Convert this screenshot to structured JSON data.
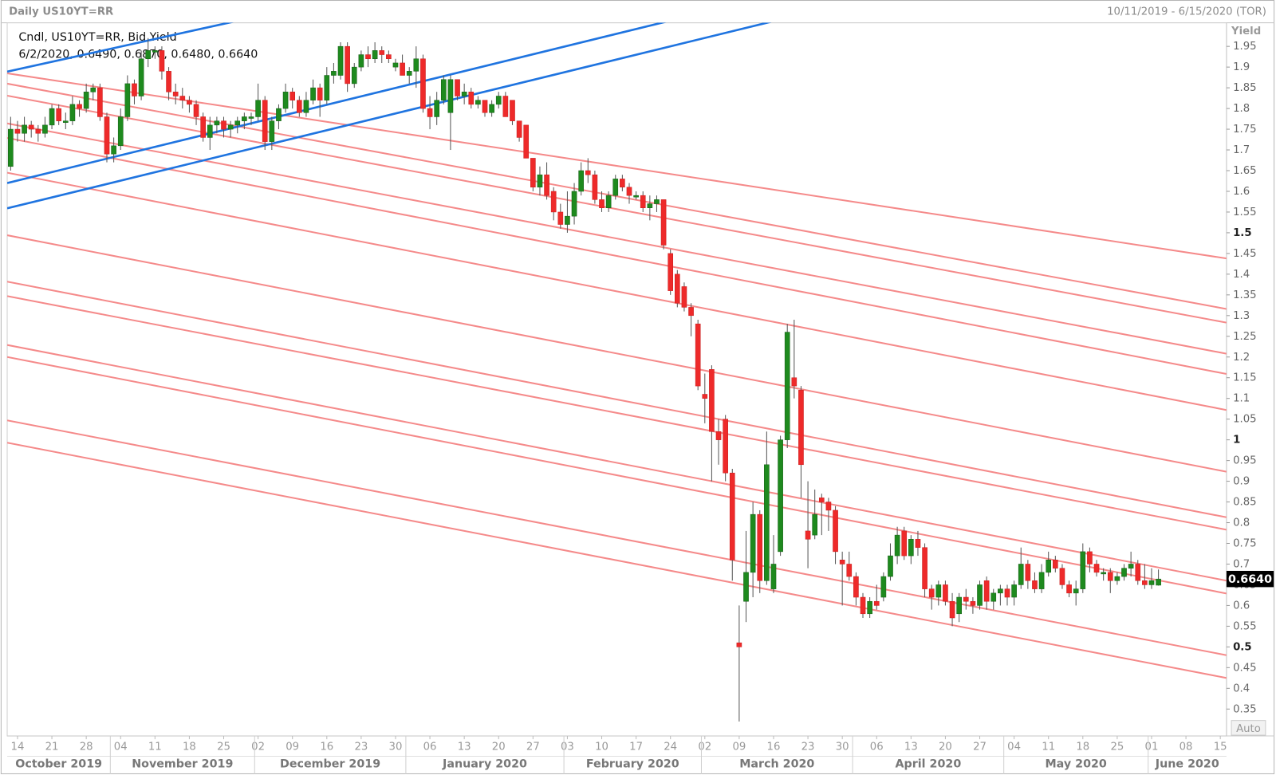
{
  "chart_data": {
    "type": "candlestick",
    "title": "Daily US10YT=RR",
    "date_range": "10/11/2019 - 6/15/2020 (TOR)",
    "legend_name": "Cndl, US10YT=RR, Bid Yield",
    "legend_values": "6/2/2020, 0.6490, 0.6870, 0.6480, 0.6640",
    "y_label": "Yield",
    "scale_mode": "Auto",
    "up_color": "#1e8a1e",
    "down_color": "#ee2a2a",
    "ylim": [
      0.285,
      2.007
    ],
    "yticks": [
      0.35,
      0.4,
      0.45,
      0.5,
      0.55,
      0.6,
      0.65,
      0.7,
      0.75,
      0.8,
      0.85,
      0.9,
      0.95,
      1,
      1.05,
      1.1,
      1.15,
      1.2,
      1.25,
      1.3,
      1.35,
      1.4,
      1.45,
      1.5,
      1.55,
      1.6,
      1.65,
      1.7,
      1.75,
      1.8,
      1.85,
      1.9,
      1.95
    ],
    "last_price": {
      "value": 0.664,
      "label": "0.6640"
    },
    "xlim": [
      -0.5,
      176.9
    ],
    "xticks": [
      {
        "value": 1,
        "label": "14"
      },
      {
        "value": 6,
        "label": "21"
      },
      {
        "value": 11,
        "label": "28"
      },
      {
        "value": 16,
        "label": "04"
      },
      {
        "value": 21,
        "label": "11"
      },
      {
        "value": 26,
        "label": "18"
      },
      {
        "value": 31,
        "label": "25"
      },
      {
        "value": 36,
        "label": "02"
      },
      {
        "value": 41,
        "label": "09"
      },
      {
        "value": 46,
        "label": "16"
      },
      {
        "value": 51,
        "label": "23"
      },
      {
        "value": 56,
        "label": "30"
      },
      {
        "value": 61,
        "label": "06"
      },
      {
        "value": 66,
        "label": "13"
      },
      {
        "value": 71,
        "label": "20"
      },
      {
        "value": 76,
        "label": "27"
      },
      {
        "value": 81,
        "label": "03"
      },
      {
        "value": 86,
        "label": "10"
      },
      {
        "value": 91,
        "label": "17"
      },
      {
        "value": 96,
        "label": "24"
      },
      {
        "value": 101,
        "label": "02"
      },
      {
        "value": 106,
        "label": "09"
      },
      {
        "value": 111,
        "label": "16"
      },
      {
        "value": 116,
        "label": "23"
      },
      {
        "value": 121,
        "label": "30"
      },
      {
        "value": 126,
        "label": "06"
      },
      {
        "value": 131,
        "label": "13"
      },
      {
        "value": 136,
        "label": "20"
      },
      {
        "value": 141,
        "label": "27"
      },
      {
        "value": 146,
        "label": "04"
      },
      {
        "value": 151,
        "label": "11"
      },
      {
        "value": 156,
        "label": "18"
      },
      {
        "value": 161,
        "label": "25"
      },
      {
        "value": 166,
        "label": "01"
      },
      {
        "value": 171,
        "label": "08"
      },
      {
        "value": 176,
        "label": "15"
      }
    ],
    "months": [
      "October 2019",
      "November 2019",
      "December 2019",
      "January 2020",
      "February 2020",
      "March 2020",
      "April 2020",
      "May 2020",
      "June 2020"
    ],
    "trend_lines": [
      {
        "color": "#f58a8a",
        "ends": [
          [
            1.885,
            1.438
          ],
          [
            1.86,
            1.316
          ],
          [
            1.831,
            1.283
          ],
          [
            1.764,
            1.208
          ],
          [
            1.729,
            1.159
          ],
          [
            1.645,
            1.072
          ],
          [
            1.494,
            0.923
          ],
          [
            1.382,
            0.813
          ],
          [
            1.347,
            0.783
          ],
          [
            1.229,
            0.66
          ],
          [
            1.2,
            0.629
          ],
          [
            1.047,
            0.48
          ],
          [
            0.993,
            0.425
          ]
        ]
      },
      {
        "color": "#1f74e0",
        "ends": [
          [
            1.889,
            2.539
          ],
          [
            1.62,
            2.341
          ],
          [
            1.559,
            2.278
          ]
        ]
      }
    ],
    "candles": [
      [
        1.66,
        1.78,
        1.65,
        1.75
      ],
      [
        1.75,
        1.77,
        1.72,
        1.74
      ],
      [
        1.74,
        1.78,
        1.72,
        1.76
      ],
      [
        1.76,
        1.77,
        1.73,
        1.75
      ],
      [
        1.75,
        1.76,
        1.72,
        1.74
      ],
      [
        1.74,
        1.78,
        1.73,
        1.76
      ],
      [
        1.76,
        1.81,
        1.75,
        1.8
      ],
      [
        1.8,
        1.81,
        1.76,
        1.77
      ],
      [
        1.77,
        1.79,
        1.75,
        1.77
      ],
      [
        1.77,
        1.83,
        1.76,
        1.81
      ],
      [
        1.81,
        1.82,
        1.78,
        1.8
      ],
      [
        1.8,
        1.86,
        1.79,
        1.84
      ],
      [
        1.84,
        1.86,
        1.82,
        1.85
      ],
      [
        1.85,
        1.86,
        1.77,
        1.78
      ],
      [
        1.78,
        1.79,
        1.67,
        1.69
      ],
      [
        1.69,
        1.73,
        1.67,
        1.71
      ],
      [
        1.71,
        1.8,
        1.7,
        1.78
      ],
      [
        1.78,
        1.88,
        1.77,
        1.86
      ],
      [
        1.86,
        1.87,
        1.81,
        1.83
      ],
      [
        1.83,
        1.94,
        1.82,
        1.92
      ],
      [
        1.92,
        1.97,
        1.9,
        1.94
      ],
      [
        1.94,
        1.95,
        1.92,
        1.94
      ],
      [
        1.94,
        1.95,
        1.87,
        1.89
      ],
      [
        1.89,
        1.9,
        1.82,
        1.84
      ],
      [
        1.84,
        1.86,
        1.81,
        1.83
      ],
      [
        1.83,
        1.85,
        1.8,
        1.82
      ],
      [
        1.82,
        1.83,
        1.79,
        1.81
      ],
      [
        1.81,
        1.82,
        1.76,
        1.78
      ],
      [
        1.78,
        1.79,
        1.72,
        1.73
      ],
      [
        1.73,
        1.78,
        1.7,
        1.76
      ],
      [
        1.76,
        1.78,
        1.74,
        1.77
      ],
      [
        1.77,
        1.78,
        1.73,
        1.75
      ],
      [
        1.75,
        1.77,
        1.73,
        1.76
      ],
      [
        1.76,
        1.78,
        1.74,
        1.77
      ],
      [
        1.77,
        1.79,
        1.75,
        1.78
      ],
      [
        1.78,
        1.79,
        1.76,
        1.78
      ],
      [
        1.78,
        1.86,
        1.77,
        1.82
      ],
      [
        1.82,
        1.83,
        1.7,
        1.72
      ],
      [
        1.72,
        1.78,
        1.7,
        1.77
      ],
      [
        1.77,
        1.81,
        1.75,
        1.8
      ],
      [
        1.8,
        1.86,
        1.79,
        1.84
      ],
      [
        1.84,
        1.85,
        1.8,
        1.82
      ],
      [
        1.82,
        1.83,
        1.78,
        1.79
      ],
      [
        1.79,
        1.84,
        1.78,
        1.82
      ],
      [
        1.82,
        1.87,
        1.81,
        1.85
      ],
      [
        1.85,
        1.86,
        1.78,
        1.82
      ],
      [
        1.82,
        1.9,
        1.81,
        1.88
      ],
      [
        1.88,
        1.91,
        1.86,
        1.89
      ],
      [
        1.88,
        1.96,
        1.87,
        1.95
      ],
      [
        1.95,
        1.96,
        1.84,
        1.86
      ],
      [
        1.86,
        1.91,
        1.85,
        1.9
      ],
      [
        1.9,
        1.94,
        1.89,
        1.93
      ],
      [
        1.93,
        1.95,
        1.9,
        1.92
      ],
      [
        1.92,
        1.96,
        1.91,
        1.94
      ],
      [
        1.94,
        1.95,
        1.91,
        1.93
      ],
      [
        1.93,
        1.94,
        1.91,
        1.92
      ],
      [
        1.9,
        1.92,
        1.89,
        1.91
      ],
      [
        1.91,
        1.93,
        1.88,
        1.88
      ],
      [
        1.88,
        1.9,
        1.86,
        1.89
      ],
      [
        1.89,
        1.95,
        1.85,
        1.92
      ],
      [
        1.92,
        1.93,
        1.79,
        1.8
      ],
      [
        1.8,
        1.83,
        1.75,
        1.78
      ],
      [
        1.78,
        1.84,
        1.76,
        1.82
      ],
      [
        1.82,
        1.88,
        1.81,
        1.87
      ],
      [
        1.79,
        1.88,
        1.7,
        1.87
      ],
      [
        1.87,
        1.87,
        1.82,
        1.83
      ],
      [
        1.83,
        1.86,
        1.81,
        1.84
      ],
      [
        1.84,
        1.85,
        1.8,
        1.81
      ],
      [
        1.81,
        1.83,
        1.8,
        1.82
      ],
      [
        1.82,
        1.82,
        1.78,
        1.79
      ],
      [
        1.79,
        1.82,
        1.78,
        1.81
      ],
      [
        1.81,
        1.84,
        1.8,
        1.83
      ],
      [
        1.83,
        1.84,
        1.78,
        1.78
      ],
      [
        1.82,
        1.82,
        1.76,
        1.77
      ],
      [
        1.77,
        1.77,
        1.72,
        1.73
      ],
      [
        1.76,
        1.76,
        1.68,
        1.68
      ],
      [
        1.68,
        1.68,
        1.6,
        1.61
      ],
      [
        1.61,
        1.66,
        1.59,
        1.64
      ],
      [
        1.64,
        1.67,
        1.58,
        1.59
      ],
      [
        1.6,
        1.61,
        1.53,
        1.55
      ],
      [
        1.55,
        1.57,
        1.51,
        1.52
      ],
      [
        1.52,
        1.6,
        1.5,
        1.54
      ],
      [
        1.54,
        1.62,
        1.52,
        1.6
      ],
      [
        1.6,
        1.67,
        1.59,
        1.65
      ],
      [
        1.65,
        1.68,
        1.62,
        1.64
      ],
      [
        1.64,
        1.65,
        1.57,
        1.58
      ],
      [
        1.58,
        1.6,
        1.55,
        1.56
      ],
      [
        1.56,
        1.6,
        1.55,
        1.59
      ],
      [
        1.59,
        1.64,
        1.58,
        1.63
      ],
      [
        1.63,
        1.64,
        1.6,
        1.61
      ],
      [
        1.61,
        1.62,
        1.57,
        1.59
      ],
      [
        1.59,
        1.6,
        1.58,
        1.59
      ],
      [
        1.59,
        1.6,
        1.55,
        1.56
      ],
      [
        1.56,
        1.59,
        1.53,
        1.57
      ],
      [
        1.57,
        1.59,
        1.55,
        1.58
      ],
      [
        1.58,
        1.58,
        1.46,
        1.47
      ],
      [
        1.45,
        1.46,
        1.35,
        1.36
      ],
      [
        1.4,
        1.41,
        1.32,
        1.33
      ],
      [
        1.37,
        1.38,
        1.31,
        1.32
      ],
      [
        1.32,
        1.33,
        1.25,
        1.3
      ],
      [
        1.28,
        1.29,
        1.12,
        1.13
      ],
      [
        1.11,
        1.16,
        1.04,
        1.1
      ],
      [
        1.17,
        1.18,
        0.9,
        1.02
      ],
      [
        1.02,
        1.05,
        0.94,
        1
      ],
      [
        1.05,
        1.06,
        0.9,
        0.92
      ],
      [
        0.92,
        0.93,
        0.66,
        0.71
      ],
      [
        0.51,
        0.6,
        0.32,
        0.5
      ],
      [
        0.61,
        0.78,
        0.56,
        0.68
      ],
      [
        0.68,
        0.85,
        0.62,
        0.82
      ],
      [
        0.82,
        0.83,
        0.63,
        0.66
      ],
      [
        0.66,
        1.02,
        0.65,
        0.94
      ],
      [
        0.64,
        0.77,
        0.63,
        0.7
      ],
      [
        0.73,
        1.01,
        0.72,
        1
      ],
      [
        1,
        1.28,
        0.98,
        1.26
      ],
      [
        1.15,
        1.29,
        1.1,
        1.13
      ],
      [
        1.12,
        1.13,
        0.86,
        0.94
      ],
      [
        0.78,
        0.9,
        0.69,
        0.76
      ],
      [
        0.77,
        0.88,
        0.76,
        0.82
      ],
      [
        0.86,
        0.87,
        0.77,
        0.85
      ],
      [
        0.85,
        0.86,
        0.78,
        0.83
      ],
      [
        0.83,
        0.84,
        0.7,
        0.73
      ],
      [
        0.71,
        0.73,
        0.6,
        0.7
      ],
      [
        0.7,
        0.73,
        0.66,
        0.67
      ],
      [
        0.67,
        0.68,
        0.6,
        0.62
      ],
      [
        0.62,
        0.63,
        0.57,
        0.58
      ],
      [
        0.58,
        0.62,
        0.57,
        0.61
      ],
      [
        0.61,
        0.65,
        0.59,
        0.6
      ],
      [
        0.62,
        0.68,
        0.61,
        0.67
      ],
      [
        0.67,
        0.75,
        0.66,
        0.72
      ],
      [
        0.72,
        0.79,
        0.7,
        0.77
      ],
      [
        0.78,
        0.79,
        0.71,
        0.72
      ],
      [
        0.72,
        0.77,
        0.7,
        0.76
      ],
      [
        0.76,
        0.78,
        0.72,
        0.74
      ],
      [
        0.74,
        0.75,
        0.62,
        0.64
      ],
      [
        0.64,
        0.65,
        0.59,
        0.62
      ],
      [
        0.62,
        0.66,
        0.6,
        0.65
      ],
      [
        0.65,
        0.66,
        0.6,
        0.61
      ],
      [
        0.61,
        0.63,
        0.55,
        0.57
      ],
      [
        0.58,
        0.63,
        0.56,
        0.62
      ],
      [
        0.62,
        0.64,
        0.59,
        0.61
      ],
      [
        0.61,
        0.62,
        0.58,
        0.6
      ],
      [
        0.6,
        0.66,
        0.59,
        0.65
      ],
      [
        0.66,
        0.67,
        0.59,
        0.61
      ],
      [
        0.61,
        0.64,
        0.59,
        0.63
      ],
      [
        0.63,
        0.65,
        0.6,
        0.64
      ],
      [
        0.64,
        0.65,
        0.6,
        0.62
      ],
      [
        0.62,
        0.66,
        0.6,
        0.65
      ],
      [
        0.65,
        0.74,
        0.64,
        0.7
      ],
      [
        0.7,
        0.71,
        0.64,
        0.66
      ],
      [
        0.66,
        0.68,
        0.63,
        0.64
      ],
      [
        0.64,
        0.7,
        0.63,
        0.68
      ],
      [
        0.68,
        0.73,
        0.67,
        0.71
      ],
      [
        0.71,
        0.72,
        0.68,
        0.69
      ],
      [
        0.69,
        0.7,
        0.64,
        0.65
      ],
      [
        0.65,
        0.66,
        0.62,
        0.63
      ],
      [
        0.63,
        0.66,
        0.6,
        0.64
      ],
      [
        0.64,
        0.75,
        0.63,
        0.73
      ],
      [
        0.73,
        0.74,
        0.68,
        0.7
      ],
      [
        0.7,
        0.71,
        0.67,
        0.68
      ],
      [
        0.68,
        0.69,
        0.66,
        0.68
      ],
      [
        0.68,
        0.69,
        0.63,
        0.66
      ],
      [
        0.66,
        0.68,
        0.65,
        0.67
      ],
      [
        0.67,
        0.7,
        0.66,
        0.69
      ],
      [
        0.69,
        0.73,
        0.67,
        0.7
      ],
      [
        0.7,
        0.71,
        0.65,
        0.66
      ],
      [
        0.66,
        0.7,
        0.64,
        0.65
      ],
      [
        0.65,
        0.69,
        0.64,
        0.66
      ],
      [
        0.649,
        0.687,
        0.648,
        0.664
      ]
    ]
  }
}
